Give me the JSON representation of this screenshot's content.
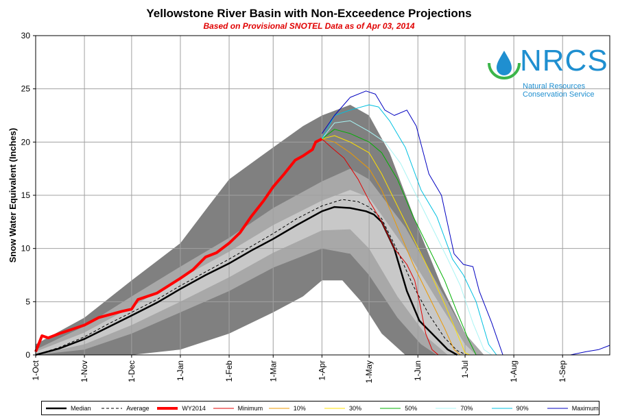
{
  "chart_data": {
    "type": "area",
    "title": "Yellowstone River Basin with Non-Exceedence Projections",
    "subtitle": "Based on Provisional SNOTEL Data as of Apr 03, 2014",
    "ylabel": "Snow Water Equivalent (Inches)",
    "xlabel": "",
    "ylim": [
      0,
      30
    ],
    "yticks": [
      0,
      5,
      10,
      15,
      20,
      25,
      30
    ],
    "x_axis": "day of water year (0 = 1-Oct)",
    "xlim": [
      0,
      365
    ],
    "xticks": [
      {
        "label": "1-Oct",
        "day": 0
      },
      {
        "label": "1-Nov",
        "day": 31
      },
      {
        "label": "1-Dec",
        "day": 61
      },
      {
        "label": "1-Jan",
        "day": 92
      },
      {
        "label": "1-Feb",
        "day": 123
      },
      {
        "label": "1-Mar",
        "day": 151
      },
      {
        "label": "1-Apr",
        "day": 182
      },
      {
        "label": "1-May",
        "day": 212
      },
      {
        "label": "1-Jun",
        "day": 243
      },
      {
        "label": "1-Jul",
        "day": 273
      },
      {
        "label": "1-Aug",
        "day": 304
      },
      {
        "label": "1-Sep",
        "day": 335
      }
    ],
    "grid": true,
    "legend_position": "bottom",
    "bands": [
      {
        "name": "max-min",
        "color": "#808080",
        "upper": [
          [
            0,
            1
          ],
          [
            31,
            3.5
          ],
          [
            61,
            7
          ],
          [
            92,
            10.5
          ],
          [
            110,
            14
          ],
          [
            123,
            16.5
          ],
          [
            151,
            19.5
          ],
          [
            170,
            21.5
          ],
          [
            182,
            22.5
          ],
          [
            200,
            23.5
          ],
          [
            212,
            22.5
          ],
          [
            225,
            19
          ],
          [
            243,
            12
          ],
          [
            258,
            6.5
          ],
          [
            273,
            2
          ],
          [
            285,
            0
          ]
        ],
        "lower": [
          [
            0,
            0
          ],
          [
            31,
            0
          ],
          [
            61,
            0
          ],
          [
            92,
            0.5
          ],
          [
            123,
            2
          ],
          [
            151,
            4
          ],
          [
            170,
            5.5
          ],
          [
            182,
            7
          ],
          [
            195,
            7
          ],
          [
            207,
            5
          ],
          [
            220,
            2
          ],
          [
            235,
            0
          ],
          [
            245,
            0
          ]
        ]
      },
      {
        "name": "90-10",
        "color": "#a8a8a8",
        "upper": [
          [
            0,
            0.5
          ],
          [
            31,
            2.7
          ],
          [
            61,
            5.5
          ],
          [
            92,
            8.3
          ],
          [
            123,
            11
          ],
          [
            151,
            13.8
          ],
          [
            182,
            16.3
          ],
          [
            200,
            17.5
          ],
          [
            212,
            16.5
          ],
          [
            235,
            12
          ],
          [
            258,
            6
          ],
          [
            273,
            2
          ],
          [
            285,
            0
          ]
        ],
        "lower": [
          [
            0,
            0
          ],
          [
            31,
            0.5
          ],
          [
            61,
            2
          ],
          [
            92,
            4
          ],
          [
            123,
            6
          ],
          [
            151,
            8.2
          ],
          [
            182,
            10
          ],
          [
            200,
            9.5
          ],
          [
            212,
            7.5
          ],
          [
            230,
            3.5
          ],
          [
            245,
            1
          ],
          [
            255,
            0
          ]
        ]
      },
      {
        "name": "70-30",
        "color": "#c8c8c8",
        "upper": [
          [
            0,
            0.3
          ],
          [
            31,
            2.1
          ],
          [
            61,
            4.5
          ],
          [
            92,
            7.2
          ],
          [
            123,
            9.7
          ],
          [
            151,
            12.2
          ],
          [
            182,
            14.5
          ],
          [
            200,
            15.5
          ],
          [
            212,
            14.8
          ],
          [
            235,
            10
          ],
          [
            258,
            4.5
          ],
          [
            273,
            1
          ],
          [
            280,
            0
          ]
        ],
        "lower": [
          [
            0,
            0
          ],
          [
            31,
            1
          ],
          [
            61,
            2.8
          ],
          [
            92,
            5
          ],
          [
            123,
            7.3
          ],
          [
            151,
            9.6
          ],
          [
            182,
            11.7
          ],
          [
            200,
            11.8
          ],
          [
            212,
            10
          ],
          [
            230,
            5.5
          ],
          [
            250,
            1.5
          ],
          [
            262,
            0
          ]
        ]
      }
    ],
    "series": [
      {
        "name": "Median",
        "color": "#000000",
        "width": 2.5,
        "dash": "",
        "points": [
          [
            0,
            0
          ],
          [
            15,
            0.6
          ],
          [
            31,
            1.5
          ],
          [
            46,
            2.6
          ],
          [
            61,
            3.7
          ],
          [
            77,
            4.9
          ],
          [
            92,
            6.2
          ],
          [
            108,
            7.5
          ],
          [
            123,
            8.6
          ],
          [
            137,
            9.8
          ],
          [
            151,
            10.9
          ],
          [
            166,
            12.2
          ],
          [
            182,
            13.5
          ],
          [
            190,
            13.9
          ],
          [
            200,
            13.8
          ],
          [
            210,
            13.5
          ],
          [
            215,
            13.2
          ],
          [
            220,
            12.5
          ],
          [
            228,
            10
          ],
          [
            236,
            6
          ],
          [
            244,
            3.2
          ],
          [
            252,
            2
          ],
          [
            262,
            0.5
          ],
          [
            268,
            0
          ]
        ]
      },
      {
        "name": "Average",
        "color": "#000000",
        "width": 1,
        "dash": "4,3",
        "points": [
          [
            0,
            0
          ],
          [
            15,
            0.7
          ],
          [
            31,
            1.7
          ],
          [
            46,
            2.9
          ],
          [
            61,
            4
          ],
          [
            77,
            5.2
          ],
          [
            92,
            6.5
          ],
          [
            108,
            7.8
          ],
          [
            123,
            9
          ],
          [
            137,
            10.2
          ],
          [
            151,
            11.4
          ],
          [
            166,
            12.8
          ],
          [
            182,
            14
          ],
          [
            195,
            14.6
          ],
          [
            205,
            14.4
          ],
          [
            212,
            13.9
          ],
          [
            220,
            12.8
          ],
          [
            230,
            9.8
          ],
          [
            240,
            6.5
          ],
          [
            250,
            3.8
          ],
          [
            260,
            1.6
          ],
          [
            268,
            0.4
          ],
          [
            274,
            0
          ]
        ]
      },
      {
        "name": "WY2014",
        "color": "#ff0000",
        "width": 4,
        "dash": "",
        "points": [
          [
            0,
            0.3
          ],
          [
            4,
            1.8
          ],
          [
            8,
            1.6
          ],
          [
            15,
            2
          ],
          [
            31,
            2.8
          ],
          [
            40,
            3.5
          ],
          [
            55,
            4.1
          ],
          [
            61,
            4.3
          ],
          [
            65,
            5.2
          ],
          [
            77,
            5.8
          ],
          [
            92,
            7.2
          ],
          [
            100,
            8
          ],
          [
            108,
            9.2
          ],
          [
            115,
            9.6
          ],
          [
            123,
            10.5
          ],
          [
            130,
            11.5
          ],
          [
            137,
            13
          ],
          [
            145,
            14.5
          ],
          [
            151,
            15.8
          ],
          [
            158,
            17
          ],
          [
            165,
            18.3
          ],
          [
            170,
            18.7
          ],
          [
            176,
            19.3
          ],
          [
            178,
            20
          ],
          [
            182,
            20.3
          ]
        ]
      },
      {
        "name": "Minimum",
        "color": "#e00000",
        "width": 1,
        "dash": "",
        "points": [
          [
            182,
            20.3
          ],
          [
            188,
            19.5
          ],
          [
            196,
            18.5
          ],
          [
            205,
            16.5
          ],
          [
            212,
            14.5
          ],
          [
            220,
            12.5
          ],
          [
            228,
            10
          ],
          [
            236,
            8.5
          ],
          [
            241,
            7
          ],
          [
            244,
            5
          ],
          [
            248,
            2
          ],
          [
            252,
            0.5
          ],
          [
            256,
            0
          ]
        ]
      },
      {
        "name": "10%",
        "color": "#ee9a00",
        "width": 1,
        "dash": "",
        "points": [
          [
            182,
            20.3
          ],
          [
            190,
            20
          ],
          [
            200,
            19
          ],
          [
            212,
            17.5
          ],
          [
            220,
            15.5
          ],
          [
            230,
            12
          ],
          [
            240,
            8.5
          ],
          [
            250,
            5.5
          ],
          [
            260,
            2.5
          ],
          [
            266,
            0.5
          ],
          [
            270,
            0
          ]
        ]
      },
      {
        "name": "30%",
        "color": "#ffe000",
        "width": 1,
        "dash": "",
        "points": [
          [
            182,
            20.3
          ],
          [
            190,
            20.6
          ],
          [
            200,
            20
          ],
          [
            212,
            19
          ],
          [
            220,
            17
          ],
          [
            230,
            14
          ],
          [
            240,
            11
          ],
          [
            250,
            8
          ],
          [
            260,
            4.8
          ],
          [
            268,
            2
          ],
          [
            273,
            0.2
          ],
          [
            276,
            0
          ]
        ]
      },
      {
        "name": "50%",
        "color": "#00b000",
        "width": 1,
        "dash": "",
        "points": [
          [
            182,
            20.3
          ],
          [
            190,
            21.2
          ],
          [
            200,
            20.8
          ],
          [
            212,
            20
          ],
          [
            220,
            19
          ],
          [
            230,
            16.5
          ],
          [
            240,
            13
          ],
          [
            250,
            10
          ],
          [
            260,
            7
          ],
          [
            268,
            4
          ],
          [
            275,
            1.5
          ],
          [
            280,
            0
          ]
        ]
      },
      {
        "name": "70%",
        "color": "#a8f4f4",
        "width": 1,
        "dash": "",
        "points": [
          [
            182,
            20.3
          ],
          [
            190,
            21.8
          ],
          [
            200,
            22
          ],
          [
            212,
            21
          ],
          [
            222,
            20
          ],
          [
            232,
            18
          ],
          [
            242,
            15
          ],
          [
            252,
            12
          ],
          [
            262,
            9
          ],
          [
            270,
            6.5
          ],
          [
            278,
            3
          ],
          [
            285,
            0.5
          ],
          [
            290,
            0
          ]
        ]
      },
      {
        "name": "90%",
        "color": "#00c0e0",
        "width": 1,
        "dash": "",
        "points": [
          [
            182,
            20.3
          ],
          [
            190,
            22.5
          ],
          [
            200,
            23
          ],
          [
            212,
            23.5
          ],
          [
            218,
            23.3
          ],
          [
            225,
            22
          ],
          [
            235,
            19.5
          ],
          [
            245,
            15.5
          ],
          [
            255,
            13
          ],
          [
            265,
            9
          ],
          [
            272,
            7.5
          ],
          [
            280,
            5
          ],
          [
            288,
            1
          ],
          [
            293,
            0
          ]
        ]
      },
      {
        "name": "Maximum",
        "color": "#0000c0",
        "width": 1,
        "dash": "",
        "points": [
          [
            182,
            20.8
          ],
          [
            190,
            22.5
          ],
          [
            200,
            24.2
          ],
          [
            210,
            24.8
          ],
          [
            216,
            24.5
          ],
          [
            222,
            23
          ],
          [
            228,
            22.5
          ],
          [
            236,
            23
          ],
          [
            242,
            21.5
          ],
          [
            250,
            17
          ],
          [
            258,
            15
          ],
          [
            266,
            9.5
          ],
          [
            272,
            8.5
          ],
          [
            278,
            8.3
          ],
          [
            282,
            6
          ],
          [
            290,
            3
          ],
          [
            297,
            0
          ]
        ]
      },
      {
        "name": "Summer",
        "color": "#0000c0",
        "width": 1,
        "dash": "",
        "points": [
          [
            297,
            0
          ],
          [
            340,
            0
          ],
          [
            350,
            0.3
          ],
          [
            358,
            0.5
          ],
          [
            365,
            0.9
          ]
        ]
      }
    ]
  },
  "logo": {
    "letters": "NRCS",
    "line1": "Natural Resources",
    "line2": "Conservation Service"
  },
  "legend": [
    {
      "label": "Median",
      "color": "#000000",
      "width": 2.5,
      "dash": ""
    },
    {
      "label": "Average",
      "color": "#000000",
      "width": 1,
      "dash": "4,3"
    },
    {
      "label": "WY2014",
      "color": "#ff0000",
      "width": 4,
      "dash": ""
    },
    {
      "label": "Minimum",
      "color": "#e00000",
      "width": 1,
      "dash": ""
    },
    {
      "label": "10%",
      "color": "#ee9a00",
      "width": 1,
      "dash": ""
    },
    {
      "label": "30%",
      "color": "#ffe000",
      "width": 1,
      "dash": ""
    },
    {
      "label": "50%",
      "color": "#00b000",
      "width": 1,
      "dash": ""
    },
    {
      "label": "70%",
      "color": "#a8f4f4",
      "width": 1,
      "dash": ""
    },
    {
      "label": "90%",
      "color": "#00c0e0",
      "width": 1,
      "dash": ""
    },
    {
      "label": "Maximum",
      "color": "#0000c0",
      "width": 1,
      "dash": ""
    }
  ]
}
